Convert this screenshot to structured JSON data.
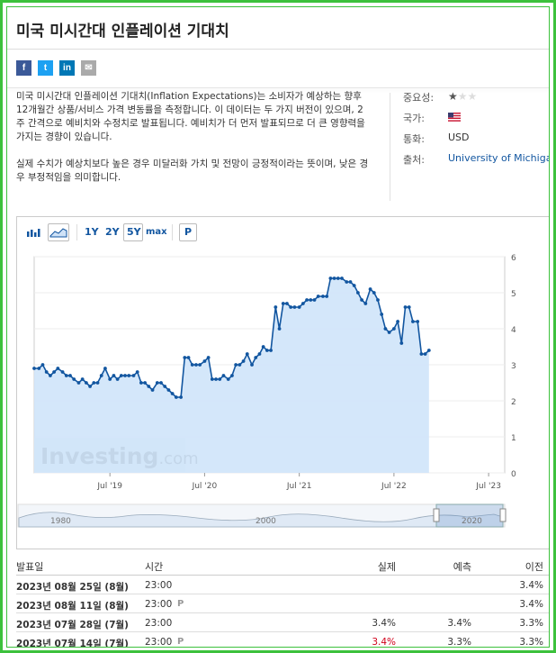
{
  "page": {
    "title": "미국 미시간대 인플레이션 기대치"
  },
  "share": [
    {
      "name": "facebook",
      "glyph": "f",
      "color": "#3b5998"
    },
    {
      "name": "twitter",
      "glyph": "t",
      "color": "#1da1f2"
    },
    {
      "name": "linkedin",
      "glyph": "in",
      "color": "#0077b5"
    },
    {
      "name": "email",
      "glyph": "✉",
      "color": "#aaaaaa"
    }
  ],
  "description": {
    "p1": "미국 미시간대 인플레이션 기대치(Inflation Expectations)는 소비자가 예상하는 향후 12개월간 상품/서비스 가격 변동률을 측정합니다. 이 데이터는 두 가지 버전이 있으며, 2주 간격으로 예비치와 수정치로 발표됩니다. 예비치가 더 먼저 발표되므로 더 큰 영향력을 가지는 경향이 있습니다.",
    "p2": "실제 수치가 예상치보다 높은 경우 미달러화 가치 및 전망이 긍정적이라는 뜻이며, 낮은 경우 부정적임을 의미합니다."
  },
  "info": {
    "importance_label": "중요성:",
    "importance_stars": 1,
    "importance_max": 3,
    "country_label": "국가:",
    "currency_label": "통화:",
    "currency_value": "USD",
    "source_label": "출처:",
    "source_value": "University of Michigan"
  },
  "toolbar": {
    "ranges": [
      "1Y",
      "2Y",
      "5Y",
      "max"
    ],
    "selected_range": "5Y",
    "p_label": "P"
  },
  "chart_data": {
    "type": "area",
    "ylim": [
      0,
      6
    ],
    "yticks": [
      "0",
      "1",
      "2",
      "3",
      "4",
      "5",
      "6"
    ],
    "xticks": [
      {
        "label": "Jul '19",
        "t": 2019.5
      },
      {
        "label": "Jul '20",
        "t": 2020.5
      },
      {
        "label": "Jul '21",
        "t": 2021.5
      },
      {
        "label": "Jul '22",
        "t": 2022.5
      },
      {
        "label": "Jul '23",
        "t": 2023.5
      }
    ],
    "xlim": [
      2018.7,
      2023.67
    ],
    "watermark": "Investing.com",
    "series": [
      {
        "points": [
          [
            2018.7,
            2.9
          ],
          [
            2018.75,
            2.9
          ],
          [
            2018.79,
            3.0
          ],
          [
            2018.83,
            2.8
          ],
          [
            2018.87,
            2.7
          ],
          [
            2018.91,
            2.8
          ],
          [
            2018.95,
            2.9
          ],
          [
            2019.0,
            2.8
          ],
          [
            2019.04,
            2.7
          ],
          [
            2019.08,
            2.7
          ],
          [
            2019.12,
            2.6
          ],
          [
            2019.17,
            2.5
          ],
          [
            2019.21,
            2.6
          ],
          [
            2019.25,
            2.5
          ],
          [
            2019.29,
            2.4
          ],
          [
            2019.33,
            2.5
          ],
          [
            2019.37,
            2.5
          ],
          [
            2019.41,
            2.7
          ],
          [
            2019.45,
            2.9
          ],
          [
            2019.5,
            2.6
          ],
          [
            2019.54,
            2.7
          ],
          [
            2019.58,
            2.6
          ],
          [
            2019.62,
            2.7
          ],
          [
            2019.66,
            2.7
          ],
          [
            2019.7,
            2.7
          ],
          [
            2019.75,
            2.7
          ],
          [
            2019.79,
            2.8
          ],
          [
            2019.83,
            2.5
          ],
          [
            2019.87,
            2.5
          ],
          [
            2019.91,
            2.4
          ],
          [
            2019.95,
            2.3
          ],
          [
            2020.0,
            2.5
          ],
          [
            2020.04,
            2.5
          ],
          [
            2020.08,
            2.4
          ],
          [
            2020.12,
            2.3
          ],
          [
            2020.16,
            2.2
          ],
          [
            2020.2,
            2.1
          ],
          [
            2020.25,
            2.1
          ],
          [
            2020.29,
            3.2
          ],
          [
            2020.33,
            3.2
          ],
          [
            2020.37,
            3.0
          ],
          [
            2020.41,
            3.0
          ],
          [
            2020.45,
            3.0
          ],
          [
            2020.5,
            3.1
          ],
          [
            2020.54,
            3.2
          ],
          [
            2020.58,
            2.6
          ],
          [
            2020.62,
            2.6
          ],
          [
            2020.66,
            2.6
          ],
          [
            2020.7,
            2.7
          ],
          [
            2020.75,
            2.6
          ],
          [
            2020.79,
            2.7
          ],
          [
            2020.83,
            3.0
          ],
          [
            2020.87,
            3.0
          ],
          [
            2020.91,
            3.1
          ],
          [
            2020.95,
            3.3
          ],
          [
            2021.0,
            3.0
          ],
          [
            2021.04,
            3.2
          ],
          [
            2021.08,
            3.3
          ],
          [
            2021.12,
            3.5
          ],
          [
            2021.16,
            3.4
          ],
          [
            2021.2,
            3.4
          ],
          [
            2021.25,
            4.6
          ],
          [
            2021.29,
            4.0
          ],
          [
            2021.33,
            4.7
          ],
          [
            2021.37,
            4.7
          ],
          [
            2021.41,
            4.6
          ],
          [
            2021.45,
            4.6
          ],
          [
            2021.5,
            4.6
          ],
          [
            2021.54,
            4.7
          ],
          [
            2021.58,
            4.8
          ],
          [
            2021.62,
            4.8
          ],
          [
            2021.66,
            4.8
          ],
          [
            2021.7,
            4.9
          ],
          [
            2021.75,
            4.9
          ],
          [
            2021.79,
            4.9
          ],
          [
            2021.83,
            5.4
          ],
          [
            2021.87,
            5.4
          ],
          [
            2021.91,
            5.4
          ],
          [
            2021.95,
            5.4
          ],
          [
            2022.0,
            5.3
          ],
          [
            2022.04,
            5.3
          ],
          [
            2022.08,
            5.2
          ],
          [
            2022.12,
            5.0
          ],
          [
            2022.16,
            4.8
          ],
          [
            2022.2,
            4.7
          ],
          [
            2022.25,
            5.1
          ],
          [
            2022.29,
            5.0
          ],
          [
            2022.33,
            4.8
          ],
          [
            2022.37,
            4.4
          ],
          [
            2022.41,
            4.0
          ],
          [
            2022.45,
            3.9
          ],
          [
            2022.5,
            4.0
          ],
          [
            2022.54,
            4.2
          ],
          [
            2022.58,
            3.6
          ],
          [
            2022.62,
            4.6
          ],
          [
            2022.66,
            4.6
          ],
          [
            2022.7,
            4.2
          ],
          [
            2022.75,
            4.2
          ],
          [
            2022.79,
            3.3
          ],
          [
            2022.83,
            3.3
          ],
          [
            2022.87,
            3.4
          ]
        ]
      }
    ]
  },
  "navigator": {
    "labels": [
      "1980",
      "2000",
      "2020"
    ]
  },
  "table": {
    "headers": {
      "date": "발표일",
      "time": "시간",
      "actual": "실제",
      "forecast": "예측",
      "previous": "이전"
    },
    "rows": [
      {
        "date": "2023년 08월 25일 (8월)",
        "time": "23:00",
        "prelim": false,
        "actual": "",
        "actual_red": false,
        "forecast": "",
        "previous": "3.4%"
      },
      {
        "date": "2023년 08월 11일 (8월)",
        "time": "23:00",
        "prelim": true,
        "actual": "",
        "actual_red": false,
        "forecast": "",
        "previous": "3.4%"
      },
      {
        "date": "2023년 07월 28일 (7월)",
        "time": "23:00",
        "prelim": false,
        "actual": "3.4%",
        "actual_red": false,
        "forecast": "3.4%",
        "previous": "3.3%"
      },
      {
        "date": "2023년 07월 14일 (7월)",
        "time": "23:00",
        "prelim": true,
        "actual": "3.4%",
        "actual_red": true,
        "forecast": "3.3%",
        "previous": "3.3%"
      }
    ]
  }
}
